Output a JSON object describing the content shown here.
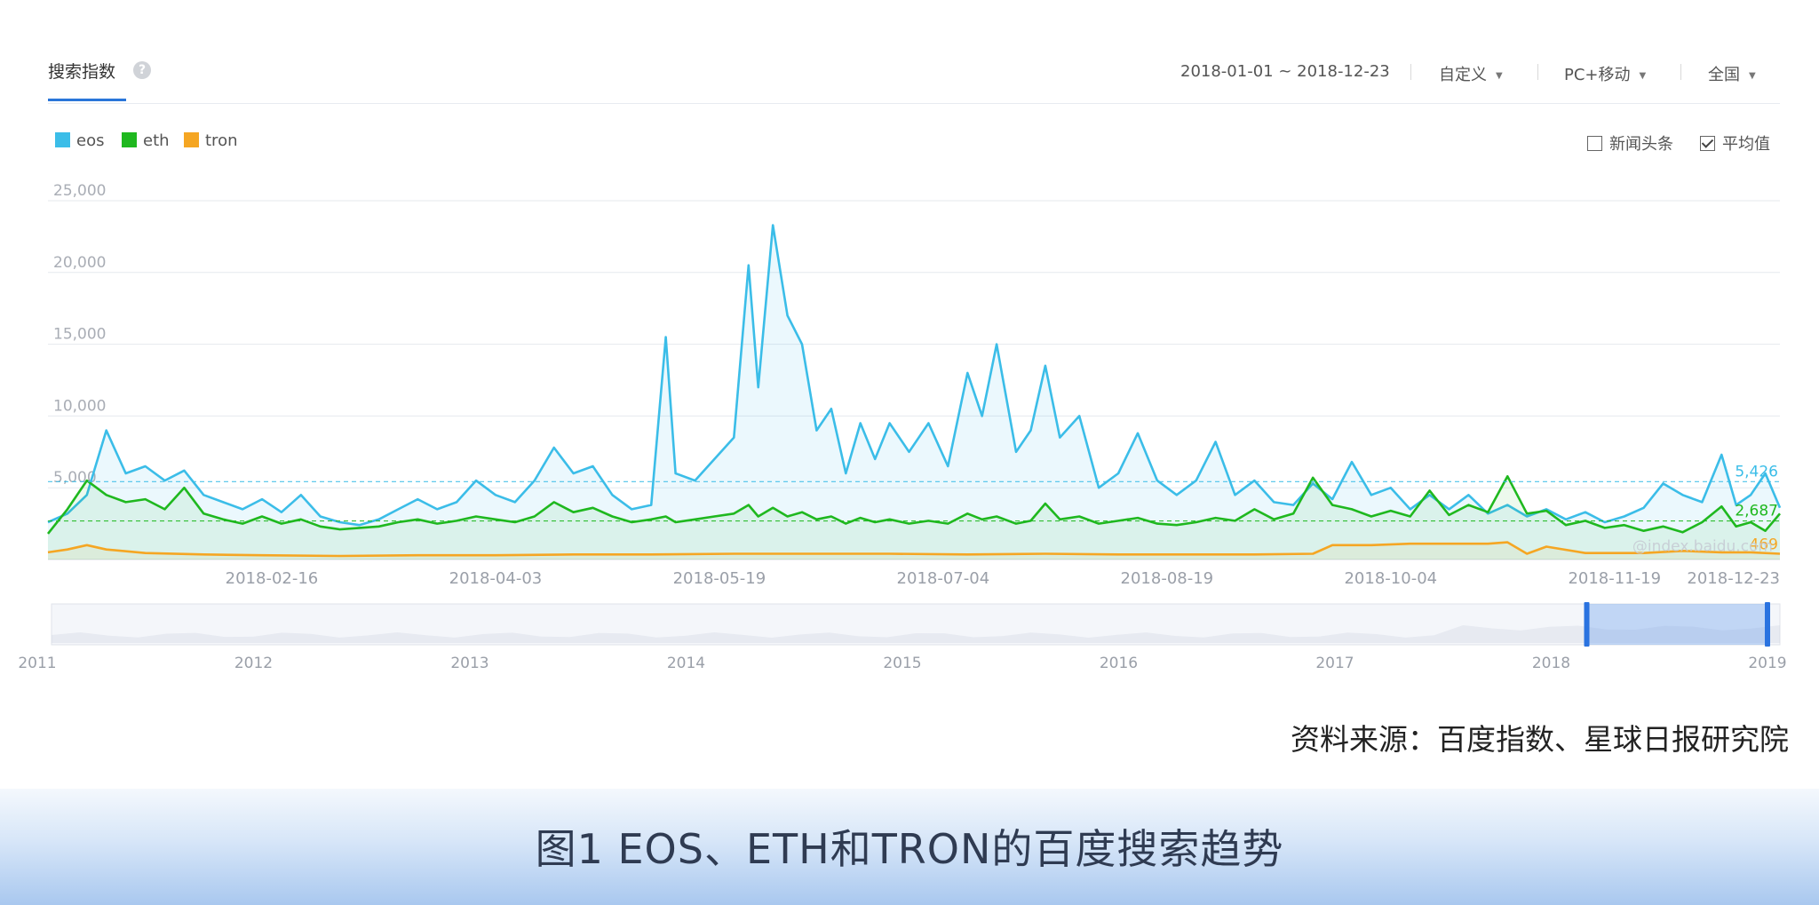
{
  "header": {
    "tab_title": "搜索指数",
    "help_icon": "?",
    "date_range": "2018-01-01 ~ 2018-12-23",
    "filters": [
      {
        "label": "自定义"
      },
      {
        "label": "PC+移动"
      },
      {
        "label": "全国"
      }
    ]
  },
  "legend": [
    {
      "name": "eos",
      "color": "#3bbde8"
    },
    {
      "name": "eth",
      "color": "#1fb81f"
    },
    {
      "name": "tron",
      "color": "#f5a623"
    }
  ],
  "toggles": [
    {
      "label": "新闻头条",
      "checked": false
    },
    {
      "label": "平均值",
      "checked": true
    }
  ],
  "chart_data": {
    "type": "line",
    "title": "",
    "xlabel": "",
    "ylabel": "",
    "ylim": [
      0,
      25000
    ],
    "yticks": [
      "25,000",
      "20,000",
      "15,000",
      "10,000",
      "5,000"
    ],
    "xticks": [
      "2018-02-16",
      "2018-04-03",
      "2018-05-19",
      "2018-07-04",
      "2018-08-19",
      "2018-10-04",
      "2018-11-19",
      "2018-12-23"
    ],
    "x_start": "2018-01-01",
    "x_end": "2018-12-23",
    "grid": true,
    "averages": {
      "eos": "5,426",
      "eth": "2,687",
      "tron": "469"
    },
    "watermark_text": "@index.baidu.com",
    "series": [
      {
        "name": "eos",
        "color": "#3bbde8",
        "points": [
          [
            "2018-01-01",
            2600
          ],
          [
            "2018-01-05",
            3200
          ],
          [
            "2018-01-09",
            4500
          ],
          [
            "2018-01-13",
            9000
          ],
          [
            "2018-01-17",
            6000
          ],
          [
            "2018-01-21",
            6500
          ],
          [
            "2018-01-25",
            5500
          ],
          [
            "2018-01-29",
            6200
          ],
          [
            "2018-02-02",
            4500
          ],
          [
            "2018-02-06",
            4000
          ],
          [
            "2018-02-10",
            3500
          ],
          [
            "2018-02-14",
            4200
          ],
          [
            "2018-02-18",
            3300
          ],
          [
            "2018-02-22",
            4500
          ],
          [
            "2018-02-26",
            3000
          ],
          [
            "2018-03-02",
            2600
          ],
          [
            "2018-03-06",
            2400
          ],
          [
            "2018-03-10",
            2800
          ],
          [
            "2018-03-14",
            3500
          ],
          [
            "2018-03-18",
            4200
          ],
          [
            "2018-03-22",
            3500
          ],
          [
            "2018-03-26",
            4000
          ],
          [
            "2018-03-30",
            5500
          ],
          [
            "2018-04-03",
            4500
          ],
          [
            "2018-04-07",
            4000
          ],
          [
            "2018-04-11",
            5500
          ],
          [
            "2018-04-15",
            7800
          ],
          [
            "2018-04-19",
            6000
          ],
          [
            "2018-04-23",
            6500
          ],
          [
            "2018-04-27",
            4500
          ],
          [
            "2018-05-01",
            3500
          ],
          [
            "2018-05-05",
            3800
          ],
          [
            "2018-05-08",
            15500
          ],
          [
            "2018-05-10",
            6000
          ],
          [
            "2018-05-14",
            5500
          ],
          [
            "2018-05-18",
            7000
          ],
          [
            "2018-05-22",
            8500
          ],
          [
            "2018-05-25",
            20500
          ],
          [
            "2018-05-27",
            12000
          ],
          [
            "2018-05-30",
            23300
          ],
          [
            "2018-06-02",
            17000
          ],
          [
            "2018-06-05",
            15000
          ],
          [
            "2018-06-08",
            9000
          ],
          [
            "2018-06-11",
            10500
          ],
          [
            "2018-06-14",
            6000
          ],
          [
            "2018-06-17",
            9500
          ],
          [
            "2018-06-20",
            7000
          ],
          [
            "2018-06-23",
            9500
          ],
          [
            "2018-06-27",
            7500
          ],
          [
            "2018-07-01",
            9500
          ],
          [
            "2018-07-05",
            6500
          ],
          [
            "2018-07-09",
            13000
          ],
          [
            "2018-07-12",
            10000
          ],
          [
            "2018-07-15",
            15000
          ],
          [
            "2018-07-19",
            7500
          ],
          [
            "2018-07-22",
            9000
          ],
          [
            "2018-07-25",
            13500
          ],
          [
            "2018-07-28",
            8500
          ],
          [
            "2018-08-01",
            10000
          ],
          [
            "2018-08-05",
            5000
          ],
          [
            "2018-08-09",
            6000
          ],
          [
            "2018-08-13",
            8800
          ],
          [
            "2018-08-17",
            5500
          ],
          [
            "2018-08-21",
            4500
          ],
          [
            "2018-08-25",
            5500
          ],
          [
            "2018-08-29",
            8200
          ],
          [
            "2018-09-02",
            4500
          ],
          [
            "2018-09-06",
            5500
          ],
          [
            "2018-09-10",
            4000
          ],
          [
            "2018-09-14",
            3800
          ],
          [
            "2018-09-18",
            5300
          ],
          [
            "2018-09-22",
            4200
          ],
          [
            "2018-09-26",
            6800
          ],
          [
            "2018-09-30",
            4500
          ],
          [
            "2018-10-04",
            5000
          ],
          [
            "2018-10-08",
            3500
          ],
          [
            "2018-10-12",
            4500
          ],
          [
            "2018-10-16",
            3500
          ],
          [
            "2018-10-20",
            4500
          ],
          [
            "2018-10-24",
            3200
          ],
          [
            "2018-10-28",
            3800
          ],
          [
            "2018-11-01",
            3000
          ],
          [
            "2018-11-05",
            3500
          ],
          [
            "2018-11-09",
            2800
          ],
          [
            "2018-11-13",
            3300
          ],
          [
            "2018-11-17",
            2600
          ],
          [
            "2018-11-21",
            3000
          ],
          [
            "2018-11-25",
            3600
          ],
          [
            "2018-11-29",
            5300
          ],
          [
            "2018-12-03",
            4500
          ],
          [
            "2018-12-07",
            4000
          ],
          [
            "2018-12-11",
            7300
          ],
          [
            "2018-12-14",
            3800
          ],
          [
            "2018-12-17",
            4500
          ],
          [
            "2018-12-20",
            6000
          ],
          [
            "2018-12-23",
            3600
          ]
        ]
      },
      {
        "name": "eth",
        "color": "#1fb81f",
        "points": [
          [
            "2018-01-01",
            1800
          ],
          [
            "2018-01-05",
            3500
          ],
          [
            "2018-01-09",
            5500
          ],
          [
            "2018-01-13",
            4500
          ],
          [
            "2018-01-17",
            4000
          ],
          [
            "2018-01-21",
            4200
          ],
          [
            "2018-01-25",
            3500
          ],
          [
            "2018-01-29",
            5000
          ],
          [
            "2018-02-02",
            3200
          ],
          [
            "2018-02-06",
            2800
          ],
          [
            "2018-02-10",
            2500
          ],
          [
            "2018-02-14",
            3000
          ],
          [
            "2018-02-18",
            2500
          ],
          [
            "2018-02-22",
            2800
          ],
          [
            "2018-02-26",
            2300
          ],
          [
            "2018-03-02",
            2100
          ],
          [
            "2018-03-06",
            2200
          ],
          [
            "2018-03-10",
            2300
          ],
          [
            "2018-03-14",
            2600
          ],
          [
            "2018-03-18",
            2800
          ],
          [
            "2018-03-22",
            2500
          ],
          [
            "2018-03-26",
            2700
          ],
          [
            "2018-03-30",
            3000
          ],
          [
            "2018-04-03",
            2800
          ],
          [
            "2018-04-07",
            2600
          ],
          [
            "2018-04-11",
            3000
          ],
          [
            "2018-04-15",
            4000
          ],
          [
            "2018-04-19",
            3300
          ],
          [
            "2018-04-23",
            3600
          ],
          [
            "2018-04-27",
            3000
          ],
          [
            "2018-05-01",
            2600
          ],
          [
            "2018-05-05",
            2800
          ],
          [
            "2018-05-08",
            3000
          ],
          [
            "2018-05-10",
            2600
          ],
          [
            "2018-05-14",
            2800
          ],
          [
            "2018-05-18",
            3000
          ],
          [
            "2018-05-22",
            3200
          ],
          [
            "2018-05-25",
            3800
          ],
          [
            "2018-05-27",
            3000
          ],
          [
            "2018-05-30",
            3600
          ],
          [
            "2018-06-02",
            3000
          ],
          [
            "2018-06-05",
            3300
          ],
          [
            "2018-06-08",
            2800
          ],
          [
            "2018-06-11",
            3000
          ],
          [
            "2018-06-14",
            2500
          ],
          [
            "2018-06-17",
            2900
          ],
          [
            "2018-06-20",
            2600
          ],
          [
            "2018-06-23",
            2800
          ],
          [
            "2018-06-27",
            2500
          ],
          [
            "2018-07-01",
            2700
          ],
          [
            "2018-07-05",
            2500
          ],
          [
            "2018-07-09",
            3200
          ],
          [
            "2018-07-12",
            2800
          ],
          [
            "2018-07-15",
            3000
          ],
          [
            "2018-07-19",
            2500
          ],
          [
            "2018-07-22",
            2700
          ],
          [
            "2018-07-25",
            3900
          ],
          [
            "2018-07-28",
            2800
          ],
          [
            "2018-08-01",
            3000
          ],
          [
            "2018-08-05",
            2500
          ],
          [
            "2018-08-09",
            2700
          ],
          [
            "2018-08-13",
            2900
          ],
          [
            "2018-08-17",
            2500
          ],
          [
            "2018-08-21",
            2400
          ],
          [
            "2018-08-25",
            2600
          ],
          [
            "2018-08-29",
            2900
          ],
          [
            "2018-09-02",
            2700
          ],
          [
            "2018-09-06",
            3500
          ],
          [
            "2018-09-10",
            2800
          ],
          [
            "2018-09-14",
            3200
          ],
          [
            "2018-09-18",
            5700
          ],
          [
            "2018-09-22",
            3800
          ],
          [
            "2018-09-26",
            3500
          ],
          [
            "2018-09-30",
            3000
          ],
          [
            "2018-10-04",
            3400
          ],
          [
            "2018-10-08",
            3000
          ],
          [
            "2018-10-12",
            4800
          ],
          [
            "2018-10-16",
            3100
          ],
          [
            "2018-10-20",
            3800
          ],
          [
            "2018-10-24",
            3300
          ],
          [
            "2018-10-28",
            5800
          ],
          [
            "2018-11-01",
            3200
          ],
          [
            "2018-11-05",
            3400
          ],
          [
            "2018-11-09",
            2400
          ],
          [
            "2018-11-13",
            2700
          ],
          [
            "2018-11-17",
            2200
          ],
          [
            "2018-11-21",
            2400
          ],
          [
            "2018-11-25",
            2000
          ],
          [
            "2018-11-29",
            2300
          ],
          [
            "2018-12-03",
            1900
          ],
          [
            "2018-12-07",
            2600
          ],
          [
            "2018-12-11",
            3700
          ],
          [
            "2018-12-14",
            2300
          ],
          [
            "2018-12-17",
            2600
          ],
          [
            "2018-12-20",
            2000
          ],
          [
            "2018-12-23",
            3200
          ]
        ]
      },
      {
        "name": "tron",
        "color": "#f5a623",
        "points": [
          [
            "2018-01-01",
            500
          ],
          [
            "2018-01-05",
            700
          ],
          [
            "2018-01-09",
            1000
          ],
          [
            "2018-01-13",
            700
          ],
          [
            "2018-01-21",
            450
          ],
          [
            "2018-02-02",
            350
          ],
          [
            "2018-02-14",
            300
          ],
          [
            "2018-03-02",
            250
          ],
          [
            "2018-03-18",
            300
          ],
          [
            "2018-04-03",
            300
          ],
          [
            "2018-04-19",
            350
          ],
          [
            "2018-05-05",
            350
          ],
          [
            "2018-05-22",
            400
          ],
          [
            "2018-06-08",
            400
          ],
          [
            "2018-06-23",
            400
          ],
          [
            "2018-07-09",
            350
          ],
          [
            "2018-07-25",
            400
          ],
          [
            "2018-08-09",
            350
          ],
          [
            "2018-08-25",
            350
          ],
          [
            "2018-09-06",
            350
          ],
          [
            "2018-09-18",
            400
          ],
          [
            "2018-09-22",
            1000
          ],
          [
            "2018-09-30",
            1000
          ],
          [
            "2018-10-08",
            1100
          ],
          [
            "2018-10-16",
            1100
          ],
          [
            "2018-10-24",
            1100
          ],
          [
            "2018-10-28",
            1200
          ],
          [
            "2018-11-01",
            400
          ],
          [
            "2018-11-05",
            900
          ],
          [
            "2018-11-13",
            450
          ],
          [
            "2018-11-25",
            450
          ],
          [
            "2018-12-03",
            600
          ],
          [
            "2018-12-11",
            500
          ],
          [
            "2018-12-17",
            500
          ],
          [
            "2018-12-23",
            400
          ]
        ]
      }
    ]
  },
  "navigator": {
    "years": [
      "2011",
      "2012",
      "2013",
      "2014",
      "2015",
      "2016",
      "2017",
      "2018",
      "2019"
    ],
    "selected_from": "2018",
    "selected_to": "2019"
  },
  "source_text": "资料来源：百度指数、星球日报研究院",
  "caption_text": "图1 EOS、ETH和TRON的百度搜索趋势"
}
